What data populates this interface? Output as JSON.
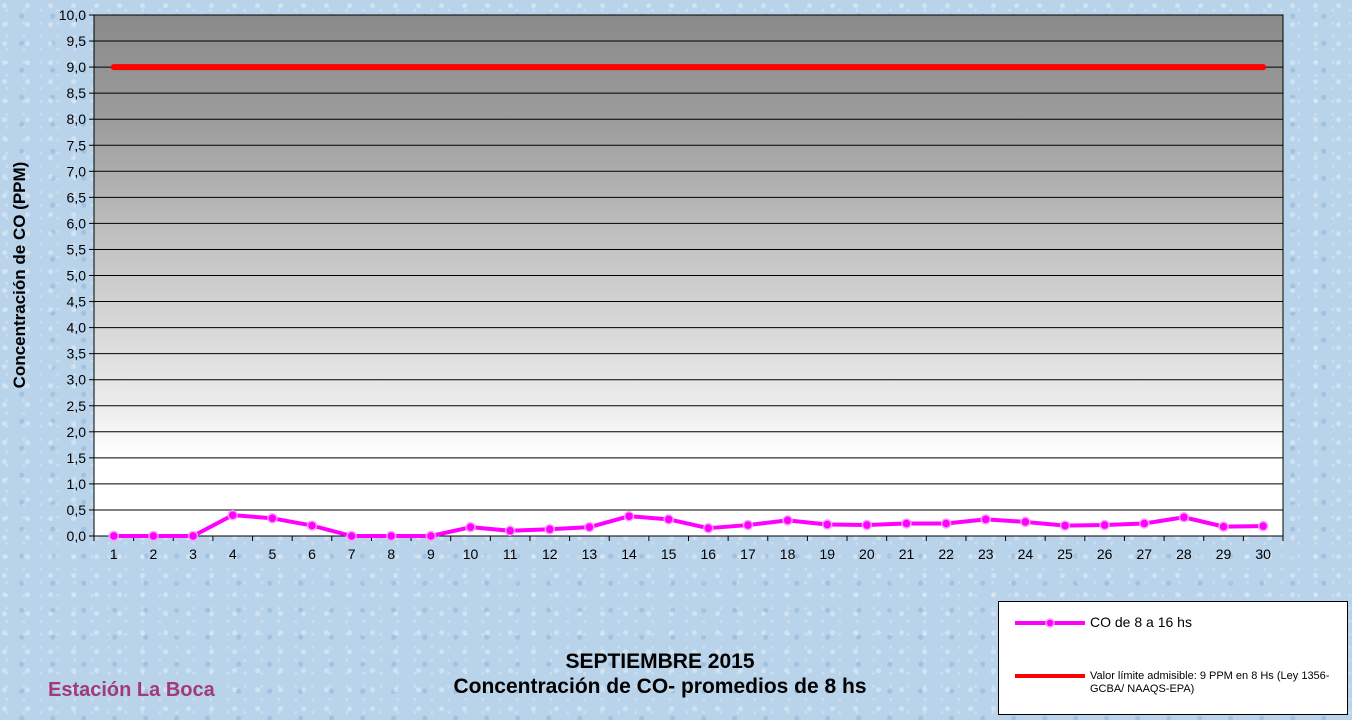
{
  "chart_data": {
    "type": "line",
    "title": "SEPTIEMBRE 2015",
    "subtitle": "Concentración de CO- promedios de 8 hs",
    "ylabel": "Concentración de CO (PPM)",
    "xlabel": "",
    "ylim": [
      0,
      10
    ],
    "ytick_step": 0.5,
    "yticks": [
      "0,0",
      "0,5",
      "1,0",
      "1,5",
      "2,0",
      "2,5",
      "3,0",
      "3,5",
      "4,0",
      "4,5",
      "5,0",
      "5,5",
      "6,0",
      "6,5",
      "7,0",
      "7,5",
      "8,0",
      "8,5",
      "9,0",
      "9,5",
      "10,0"
    ],
    "categories": [
      "1",
      "2",
      "3",
      "4",
      "5",
      "6",
      "7",
      "8",
      "9",
      "10",
      "11",
      "12",
      "13",
      "14",
      "15",
      "16",
      "17",
      "18",
      "19",
      "20",
      "21",
      "22",
      "23",
      "24",
      "25",
      "26",
      "27",
      "28",
      "29",
      "30"
    ],
    "grid": true,
    "legend_position": "bottom-right",
    "series": [
      {
        "name": "CO de 8 a 16 hs",
        "color": "#ff00ff",
        "marker": "circle",
        "values": [
          0.0,
          0.0,
          0.0,
          0.4,
          0.34,
          0.2,
          0.0,
          0.0,
          0.0,
          0.17,
          0.1,
          0.13,
          0.17,
          0.38,
          0.32,
          0.15,
          0.21,
          0.3,
          0.22,
          0.21,
          0.24,
          0.24,
          0.32,
          0.27,
          0.2,
          0.21,
          0.24,
          0.36,
          0.18,
          0.19
        ]
      },
      {
        "name": "Valor límite admisible: 9 PPM en 8 Hs (Ley 1356-GCBA/ NAAQS-EPA)",
        "color": "#ff0000",
        "marker": "none",
        "values": [
          9,
          9,
          9,
          9,
          9,
          9,
          9,
          9,
          9,
          9,
          9,
          9,
          9,
          9,
          9,
          9,
          9,
          9,
          9,
          9,
          9,
          9,
          9,
          9,
          9,
          9,
          9,
          9,
          9,
          9
        ]
      }
    ]
  },
  "station_label": "Estación La Boca",
  "colors": {
    "plot_gradient_top": "#8c8c8c",
    "plot_gradient_bottom": "#ffffff",
    "grid": "#000000",
    "station_text": "#a33a78"
  }
}
